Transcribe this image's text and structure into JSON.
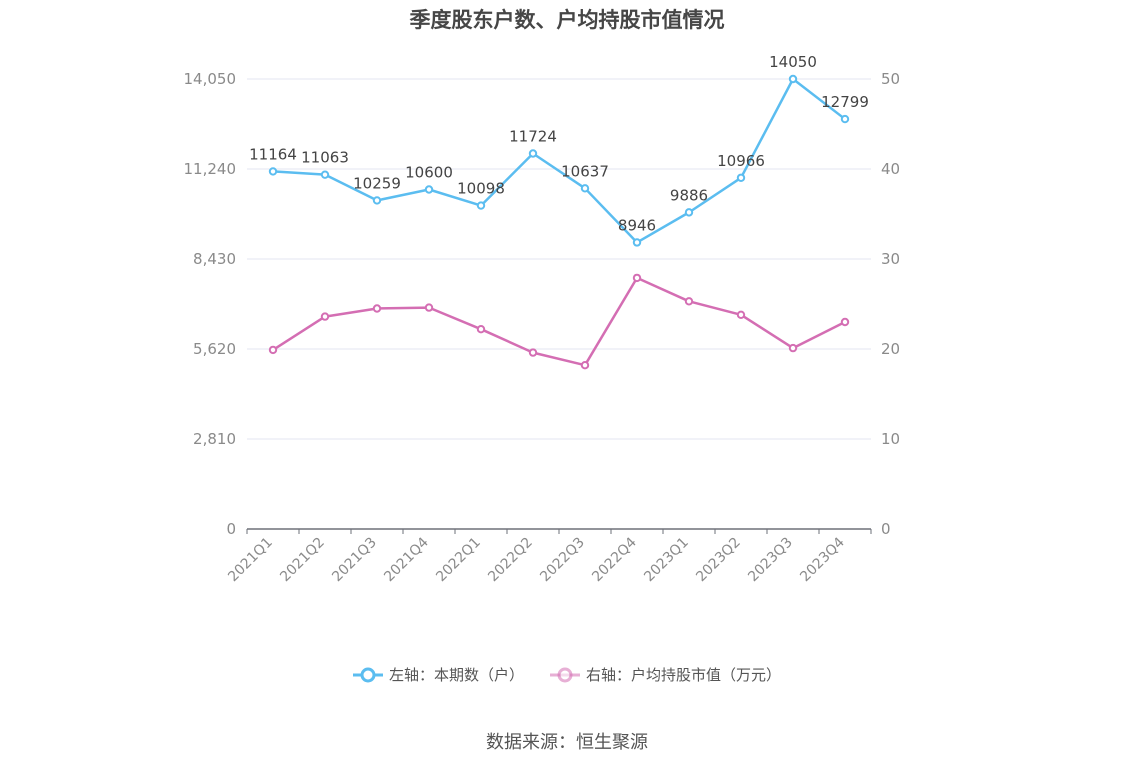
{
  "chart_data": {
    "type": "line",
    "title": "季度股东户数、户均持股市值情况",
    "categories": [
      "2021Q1",
      "2021Q2",
      "2021Q3",
      "2021Q4",
      "2022Q1",
      "2022Q2",
      "2022Q3",
      "2022Q4",
      "2023Q1",
      "2023Q2",
      "2023Q3",
      "2023Q4"
    ],
    "series": [
      {
        "name": "左轴：本期数（户）",
        "axis": "left",
        "color": "#5bbdf0",
        "values": [
          11164,
          11063,
          10259,
          10600,
          10098,
          11724,
          10637,
          8946,
          9886,
          10966,
          14050,
          12799
        ],
        "data_labels": [
          "11164",
          "11063",
          "10259",
          "10600",
          "10098",
          "11724",
          "10637",
          "8946",
          "9886",
          "10966",
          "14050",
          "12799"
        ]
      },
      {
        "name": "右轴：户均持股市值（万元）",
        "axis": "right",
        "color": "#d46eb3",
        "values": [
          19.9,
          23.6,
          24.5,
          24.6,
          22.2,
          19.6,
          18.2,
          27.9,
          25.3,
          23.8,
          20.1,
          23.0
        ]
      }
    ],
    "y_left": {
      "ylim": [
        0,
        14050
      ],
      "ticks": [
        0,
        2810,
        5620,
        8430,
        11240,
        14050
      ],
      "tick_labels": [
        "0",
        "2,810",
        "5,620",
        "8,430",
        "11,240",
        "14,050"
      ]
    },
    "y_right": {
      "ylim": [
        0,
        50
      ],
      "ticks": [
        0,
        10,
        20,
        30,
        40,
        50
      ],
      "tick_labels": [
        "0",
        "10",
        "20",
        "30",
        "40",
        "50"
      ]
    },
    "grid": true,
    "legend_position": "bottom-center"
  },
  "source_text": "数据来源：恒生聚源"
}
